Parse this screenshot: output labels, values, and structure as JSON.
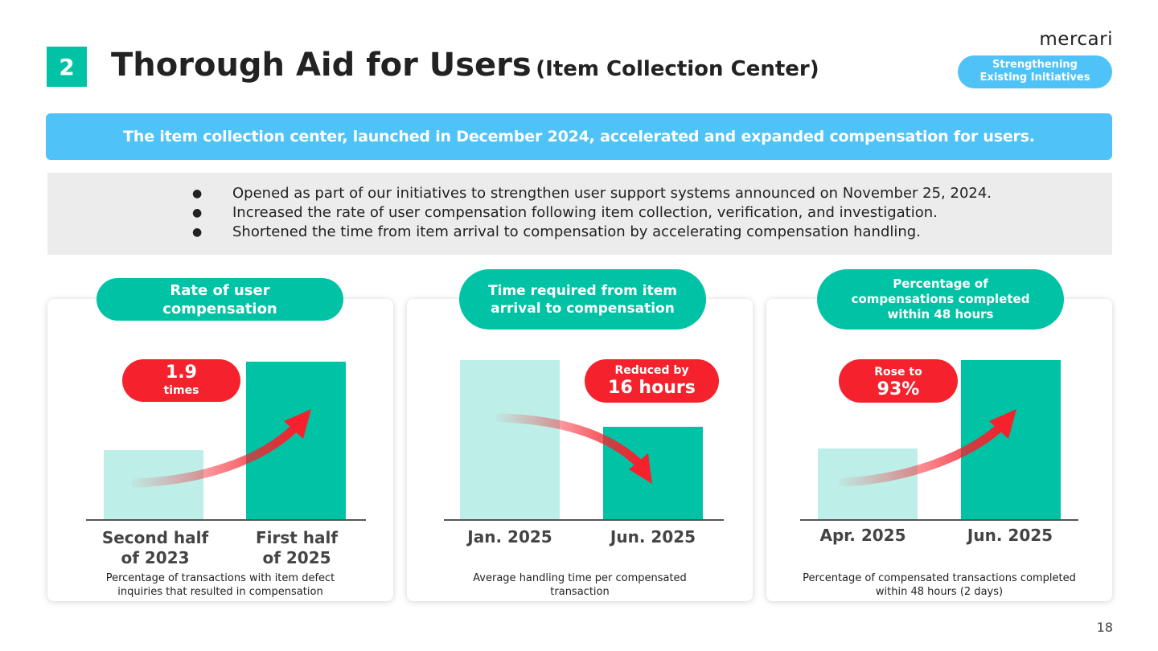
{
  "logo": "mercari",
  "header": {
    "section_number": "2",
    "title": "Thorough Aid for Users",
    "title_sub": "(Item Collection Center)",
    "tag": [
      "Strengthening",
      "Existing Initiatives"
    ]
  },
  "banner": "The item collection center, launched in December 2024, accelerated and expanded compensation for users.",
  "bullets": [
    "Opened as part of our initiatives to strengthen user support systems announced on November 25, 2024.",
    "Increased the rate of user compensation following item collection, verification, and investigation.",
    "Shortened the time from item arrival to compensation by accelerating compensation handling."
  ],
  "cards": [
    {
      "label": [
        "Rate of user",
        "compensation"
      ],
      "badge": [
        "1.9",
        "times"
      ],
      "categories": [
        [
          "Second half",
          "of 2023"
        ],
        [
          "First half",
          "of 2025"
        ]
      ],
      "note": [
        "Percentage of transactions with item defect",
        "inquiries that resulted in compensation"
      ]
    },
    {
      "label": [
        "Time required from item",
        "arrival to compensation"
      ],
      "badge": [
        "Reduced by",
        "16 hours"
      ],
      "categories": [
        "Jan. 2025",
        "Jun. 2025"
      ],
      "note": [
        "Average handling time per compensated",
        "transaction"
      ]
    },
    {
      "label": [
        "Percentage of",
        "compensations completed",
        "within 48 hours"
      ],
      "badge": [
        "Rose to",
        "93%"
      ],
      "categories": [
        "Apr. 2025",
        "Jun. 2025"
      ],
      "note": [
        "Percentage of compensated transactions completed",
        "within 48 hours (2 days)"
      ]
    }
  ],
  "colors": {
    "teal": "#00c3a6",
    "light_teal": "#bdeee8",
    "sky": "#4fc3f7",
    "red": "#f5222d"
  },
  "page_number": "18"
}
